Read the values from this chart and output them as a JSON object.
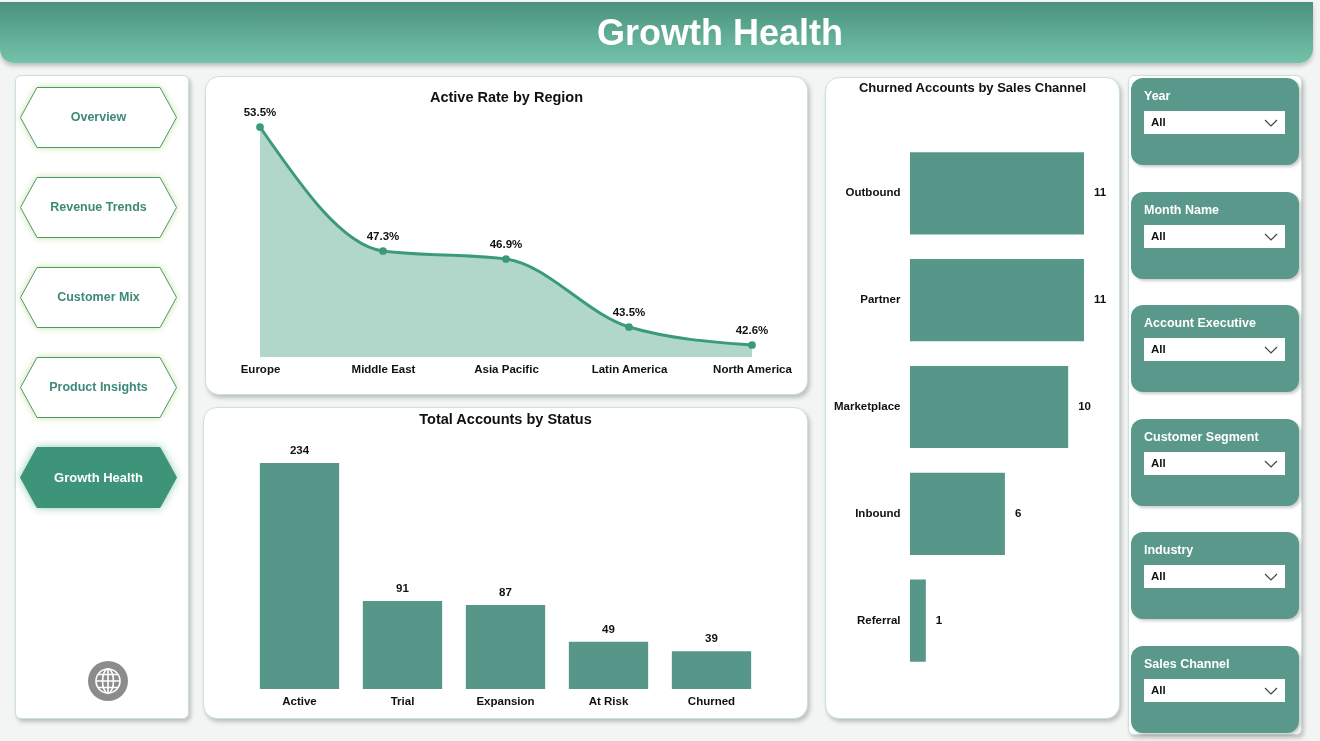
{
  "chart_data": [
    {
      "type": "other",
      "title": "Growth Health"
    },
    {
      "type": "other",
      "annotations": [
        "Overview",
        "Revenue Trends",
        "Customer Mix",
        "Product Insights",
        "Growth Health"
      ]
    },
    {
      "type": "area",
      "title": "Active Rate by Region",
      "categories": [
        "Europe",
        "Middle East",
        "Asia Pacific",
        "Latin America",
        "North America"
      ],
      "values": [
        53.5,
        47.3,
        46.9,
        43.5,
        42.6
      ],
      "value_labels": [
        "53.5%",
        "47.3%",
        "46.9%",
        "43.5%",
        "42.6%"
      ],
      "color": "#3a9a7b",
      "marker": "circle",
      "tick_labels": "x"
    },
    {
      "type": "bar",
      "title": "Total Accounts by Status",
      "categories": [
        "Active",
        "Trial",
        "Expansion",
        "At Risk",
        "Churned"
      ],
      "values": [
        234,
        91,
        87,
        49,
        39
      ],
      "color": "#57978a",
      "data_labels": true,
      "tick_labels": "x"
    },
    {
      "type": "bar",
      "orientation": "horizontal",
      "title": "Churned Accounts by Sales Channel",
      "categories": [
        "Outbound",
        "Partner",
        "Marketplace",
        "Inbound",
        "Referral"
      ],
      "values": [
        11,
        11,
        10,
        6,
        1
      ],
      "color": "#57978a",
      "data_labels": true,
      "tick_labels": "y"
    },
    {
      "type": "other",
      "annotations": [
        "Year",
        "All",
        "Month Name",
        "All",
        "Account Executive",
        "All",
        "Customer Segment",
        "All",
        "Industry",
        "All",
        "Sales Channel",
        "All"
      ]
    }
  ]
}
